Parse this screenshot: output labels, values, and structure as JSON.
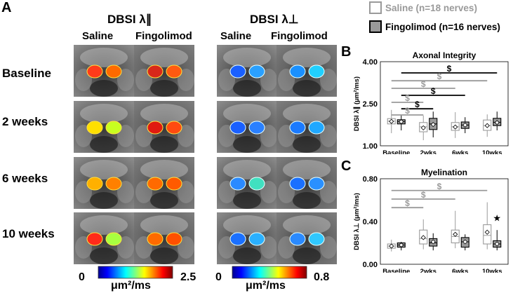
{
  "panel_a": {
    "letter": "A",
    "headers": {
      "parallel": "DBSI λ∥",
      "perp": "DBSI λ⊥"
    },
    "columns": [
      "Saline",
      "Fingolimod"
    ],
    "rows": [
      "Baseline",
      "2 weeks",
      "6 weeks",
      "10 weeks"
    ],
    "colorbars": [
      {
        "min": "0",
        "max": "2.5",
        "unit": "μm²/ms"
      },
      {
        "min": "0",
        "max": "0.8",
        "unit": "μm²/ms"
      }
    ]
  },
  "legend": {
    "saline": {
      "label": "Saline (n=18 nerves)",
      "color": "#9a9a9a"
    },
    "fingolimod": {
      "label": "Fingolimod (n=16 nerves)",
      "color": "#000000"
    }
  },
  "panel_b": {
    "letter": "B"
  },
  "panel_c": {
    "letter": "C"
  },
  "chart_data": [
    {
      "type": "box",
      "title": "Axonal Integrity",
      "ylabel": "DBSI λ∥ (μm²/ms)",
      "ylim": [
        1.0,
        4.0
      ],
      "yticks": [
        "1.00",
        "2.50",
        "4.00"
      ],
      "categories": [
        "Baseline",
        "2wks",
        "6wks",
        "10wks"
      ],
      "series": [
        {
          "key": "saline",
          "boxes": [
            {
              "min": 1.45,
              "q1": 1.78,
              "median": 1.88,
              "q3": 1.97,
              "max": 2.28,
              "mean": 1.87
            },
            {
              "min": 1.2,
              "q1": 1.5,
              "median": 1.68,
              "q3": 1.83,
              "max": 2.08,
              "mean": 1.64
            },
            {
              "min": 1.28,
              "q1": 1.55,
              "median": 1.68,
              "q3": 1.83,
              "max": 2.2,
              "mean": 1.67
            },
            {
              "min": 1.32,
              "q1": 1.55,
              "median": 1.72,
              "q3": 1.92,
              "max": 2.12,
              "mean": 1.72
            }
          ]
        },
        {
          "key": "fingolimod",
          "boxes": [
            {
              "min": 1.55,
              "q1": 1.78,
              "median": 1.86,
              "q3": 1.93,
              "max": 2.1,
              "mean": 1.86
            },
            {
              "min": 1.3,
              "q1": 1.58,
              "median": 1.78,
              "q3": 1.98,
              "max": 2.22,
              "mean": 1.76
            },
            {
              "min": 1.45,
              "q1": 1.62,
              "median": 1.74,
              "q3": 1.85,
              "max": 2.02,
              "mean": 1.74
            },
            {
              "min": 1.55,
              "q1": 1.72,
              "median": 1.84,
              "q3": 1.98,
              "max": 2.22,
              "mean": 1.83
            }
          ]
        }
      ],
      "comparisons": [
        {
          "from": 0,
          "to": 3,
          "group": "fingolimod",
          "label": "$",
          "level": 3.6
        },
        {
          "from": 0,
          "to": 3,
          "group": "saline",
          "label": "$",
          "level": 3.32
        },
        {
          "from": 0,
          "to": 2,
          "group": "saline",
          "label": "$",
          "level": 3.05
        },
        {
          "from": 0,
          "to": 2,
          "group": "fingolimod",
          "label": "$",
          "level": 2.8
        },
        {
          "from": 0,
          "to": 1,
          "group": "saline",
          "label": "$",
          "level": 2.55
        },
        {
          "from": 0,
          "to": 1,
          "group": "fingolimod",
          "label": "$",
          "level": 2.32
        },
        {
          "from": 0,
          "to": 1,
          "group": "saline",
          "label": "$",
          "level": 2.1
        }
      ]
    },
    {
      "type": "box",
      "title": "Myelination",
      "ylabel": "DBSI λ⊥ (μm²/ms)",
      "ylim": [
        0.0,
        0.8
      ],
      "yticks": [
        "0.00",
        "0.40",
        "0.80"
      ],
      "categories": [
        "Baseline",
        "2wks",
        "6wks",
        "10wks"
      ],
      "series": [
        {
          "key": "saline",
          "boxes": [
            {
              "min": 0.12,
              "q1": 0.15,
              "median": 0.17,
              "q3": 0.19,
              "max": 0.23,
              "mean": 0.17
            },
            {
              "min": 0.14,
              "q1": 0.19,
              "median": 0.24,
              "q3": 0.32,
              "max": 0.42,
              "mean": 0.25
            },
            {
              "min": 0.15,
              "q1": 0.2,
              "median": 0.26,
              "q3": 0.32,
              "max": 0.5,
              "mean": 0.28
            },
            {
              "min": 0.14,
              "q1": 0.19,
              "median": 0.27,
              "q3": 0.37,
              "max": 0.58,
              "mean": 0.3
            }
          ]
        },
        {
          "key": "fingolimod",
          "boxes": [
            {
              "min": 0.13,
              "q1": 0.16,
              "median": 0.18,
              "q3": 0.2,
              "max": 0.21,
              "mean": 0.18
            },
            {
              "min": 0.13,
              "q1": 0.17,
              "median": 0.2,
              "q3": 0.24,
              "max": 0.29,
              "mean": 0.21
            },
            {
              "min": 0.13,
              "q1": 0.16,
              "median": 0.21,
              "q3": 0.25,
              "max": 0.28,
              "mean": 0.21
            },
            {
              "min": 0.13,
              "q1": 0.16,
              "median": 0.19,
              "q3": 0.22,
              "max": 0.32,
              "mean": 0.19
            }
          ]
        }
      ],
      "comparisons": [
        {
          "from": 0,
          "to": 3,
          "group": "saline",
          "label": "$",
          "level": 0.69
        },
        {
          "from": 0,
          "to": 2,
          "group": "saline",
          "label": "$",
          "level": 0.61
        },
        {
          "from": 0,
          "to": 1,
          "group": "saline",
          "label": "$",
          "level": 0.53
        }
      ],
      "annotations": [
        {
          "category": 3,
          "group": "fingolimod",
          "symbol": "★",
          "value": 0.43
        }
      ]
    }
  ]
}
